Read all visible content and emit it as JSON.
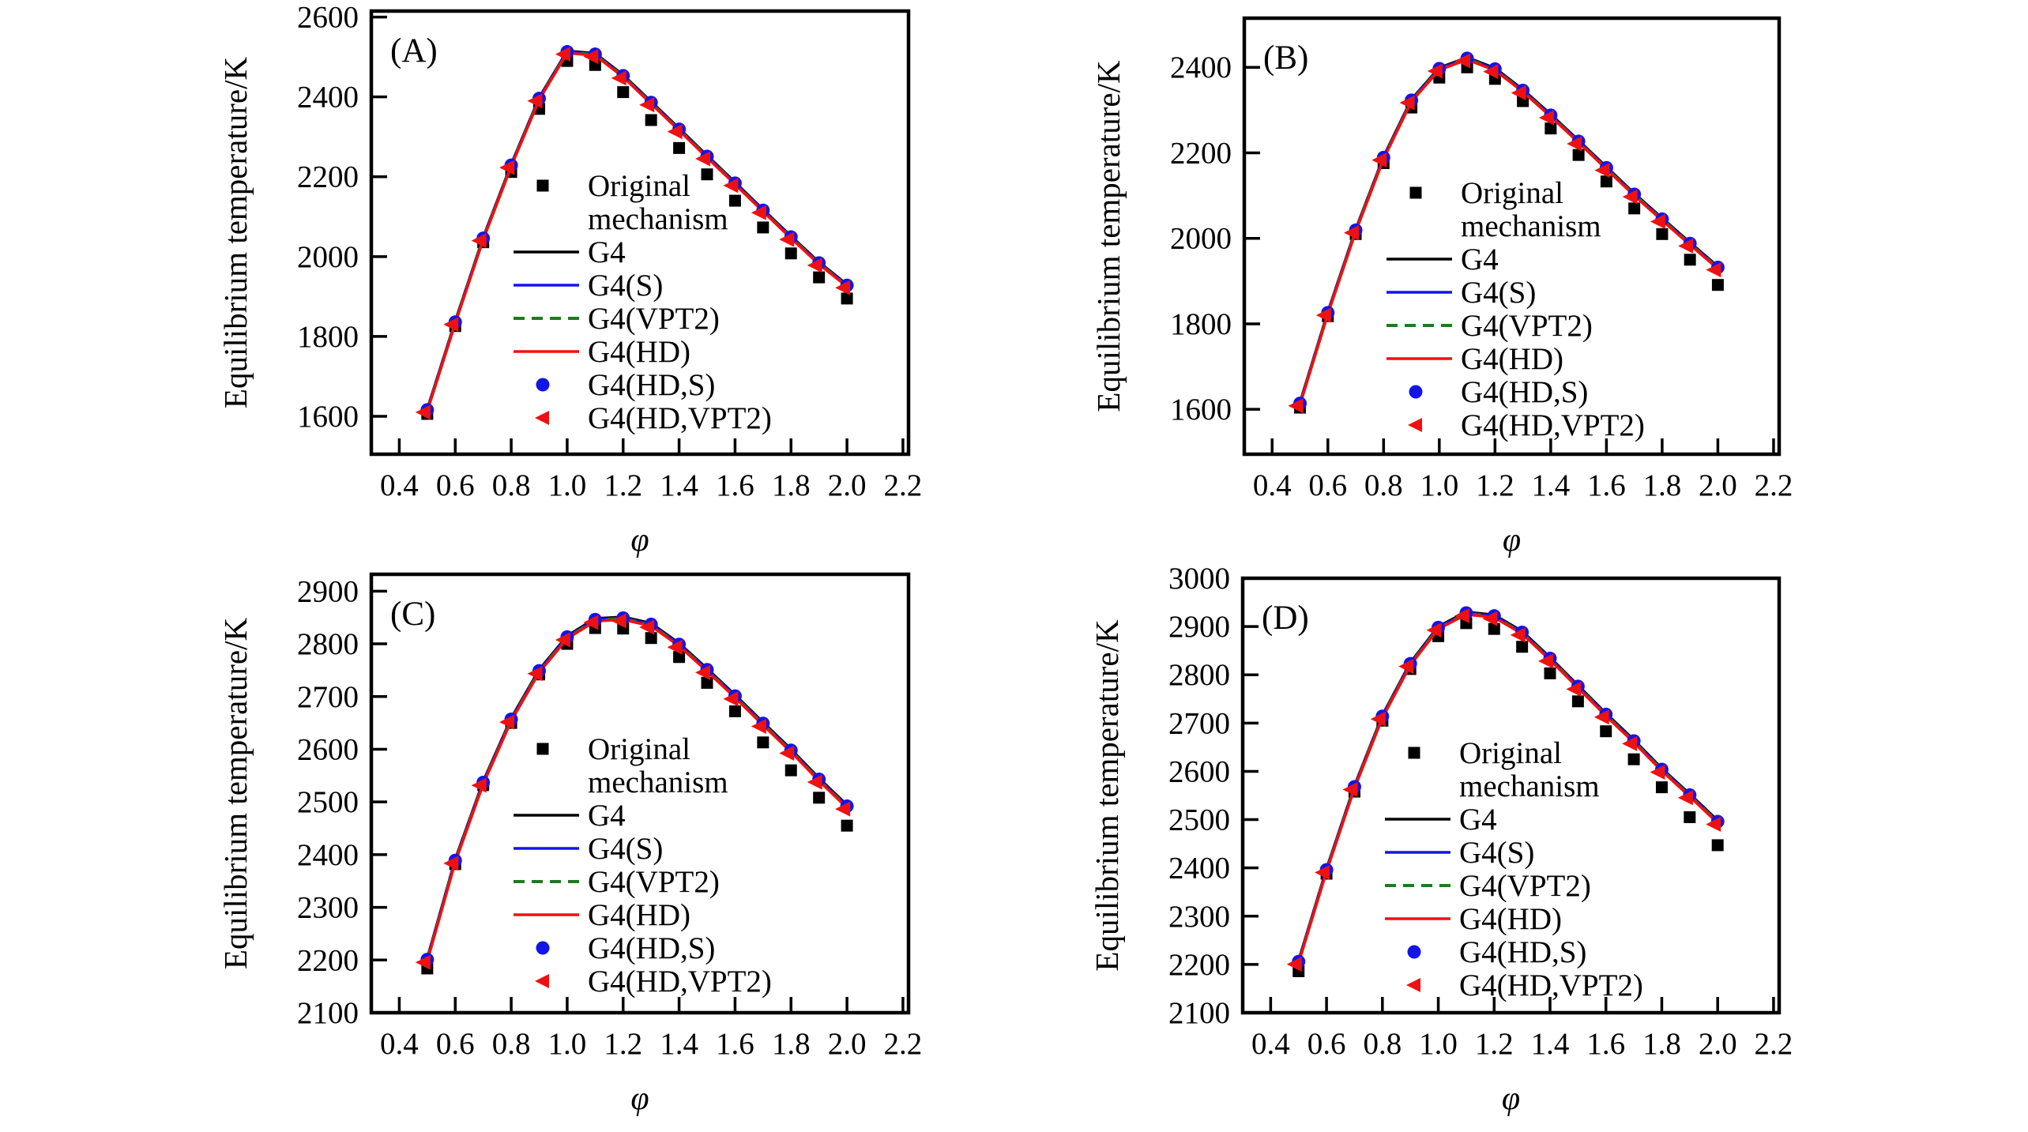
{
  "figure": {
    "background": "#ffffff",
    "colors": {
      "black": "#000000",
      "blue": "#1414e8",
      "green": "#1f7a1f",
      "red": "#ee1111",
      "frame": "#000000"
    },
    "legend": [
      {
        "lines": [
          "Original",
          "mechanism"
        ],
        "marker": "square",
        "color": "black"
      },
      {
        "lines": [
          "G4"
        ],
        "marker": "line",
        "color": "black"
      },
      {
        "lines": [
          "G4(S)"
        ],
        "marker": "line",
        "color": "blue"
      },
      {
        "lines": [
          "G4(VPT2)"
        ],
        "marker": "dash",
        "color": "green"
      },
      {
        "lines": [
          "G4(HD)"
        ],
        "marker": "line",
        "color": "red"
      },
      {
        "lines": [
          "G4(HD,S)"
        ],
        "marker": "circle",
        "color": "blue"
      },
      {
        "lines": [
          "G4(HD,VPT2)"
        ],
        "marker": "triangle",
        "color": "red"
      }
    ]
  },
  "chart_data": [
    {
      "type": "line",
      "panel_label": "(A)",
      "xlabel": "φ",
      "ylabel": "Equilibrium temperature/K",
      "x": [
        0.5,
        0.6,
        0.7,
        0.8,
        0.9,
        1.0,
        1.1,
        1.2,
        1.3,
        1.4,
        1.5,
        1.6,
        1.7,
        1.8,
        1.9,
        2.0
      ],
      "xticks": [
        0.4,
        0.6,
        0.8,
        1.0,
        1.2,
        1.4,
        1.6,
        1.8,
        2.0,
        2.2
      ],
      "xlim": [
        0.3,
        2.22
      ],
      "yticks": [
        1600,
        1800,
        2000,
        2200,
        2400,
        2600
      ],
      "ylim": [
        1505,
        2615
      ],
      "series": [
        {
          "name": "Original mechanism",
          "values": [
            1606,
            1826,
            2036,
            2212,
            2370,
            2490,
            2480,
            2412,
            2342,
            2272,
            2206,
            2140,
            2073,
            2008,
            1948,
            1895
          ]
        },
        {
          "name": "G4 family (G4, G4(S), G4(VPT2), G4(HD), G4(HD,S), G4(HD,VPT2))",
          "values": [
            1615,
            1835,
            2045,
            2228,
            2395,
            2512,
            2506,
            2452,
            2385,
            2318,
            2250,
            2183,
            2115,
            2048,
            1983,
            1927
          ]
        }
      ]
    },
    {
      "type": "line",
      "panel_label": "(B)",
      "xlabel": "φ",
      "ylabel": "Equilibrium temperature/K",
      "x": [
        0.5,
        0.6,
        0.7,
        0.8,
        0.9,
        1.0,
        1.1,
        1.2,
        1.3,
        1.4,
        1.5,
        1.6,
        1.7,
        1.8,
        1.9,
        2.0
      ],
      "xticks": [
        0.4,
        0.6,
        0.8,
        1.0,
        1.2,
        1.4,
        1.6,
        1.8,
        2.0,
        2.2
      ],
      "xlim": [
        0.3,
        2.22
      ],
      "yticks": [
        1600,
        1800,
        2000,
        2200,
        2400
      ],
      "ylim": [
        1495,
        2515
      ],
      "series": [
        {
          "name": "Original mechanism",
          "values": [
            1604,
            1818,
            2010,
            2176,
            2306,
            2376,
            2400,
            2373,
            2321,
            2257,
            2195,
            2133,
            2070,
            2010,
            1950,
            1891
          ]
        },
        {
          "name": "G4 family (G4, G4(S), G4(VPT2), G4(HD), G4(HD,S), G4(HD,VPT2))",
          "values": [
            1613,
            1825,
            2018,
            2188,
            2322,
            2396,
            2420,
            2395,
            2345,
            2287,
            2226,
            2164,
            2102,
            2044,
            1987,
            1931
          ]
        }
      ]
    },
    {
      "type": "line",
      "panel_label": "(C)",
      "xlabel": "φ",
      "ylabel": "Equilibrium temperature/K",
      "x": [
        0.5,
        0.6,
        0.7,
        0.8,
        0.9,
        1.0,
        1.1,
        1.2,
        1.3,
        1.4,
        1.5,
        1.6,
        1.7,
        1.8,
        1.9,
        2.0
      ],
      "xticks": [
        0.4,
        0.6,
        0.8,
        1.0,
        1.2,
        1.4,
        1.6,
        1.8,
        2.0,
        2.2
      ],
      "xlim": [
        0.3,
        2.22
      ],
      "yticks": [
        2100,
        2200,
        2300,
        2400,
        2500,
        2600,
        2700,
        2800,
        2900
      ],
      "ylim": [
        2100,
        2932
      ],
      "series": [
        {
          "name": "Original mechanism",
          "values": [
            2184,
            2382,
            2532,
            2650,
            2742,
            2800,
            2830,
            2829,
            2811,
            2775,
            2726,
            2672,
            2613,
            2560,
            2508,
            2455
          ]
        },
        {
          "name": "G4 family (G4, G4(S), G4(VPT2), G4(HD), G4(HD,S), G4(HD,VPT2))",
          "values": [
            2200,
            2388,
            2536,
            2656,
            2748,
            2812,
            2845,
            2848,
            2836,
            2798,
            2750,
            2700,
            2648,
            2597,
            2542,
            2491
          ]
        }
      ]
    },
    {
      "type": "line",
      "panel_label": "(D)",
      "xlabel": "φ",
      "ylabel": "Equilibrium temperature/K",
      "x": [
        0.5,
        0.6,
        0.7,
        0.8,
        0.9,
        1.0,
        1.1,
        1.2,
        1.3,
        1.4,
        1.5,
        1.6,
        1.7,
        1.8,
        1.9,
        2.0
      ],
      "xticks": [
        0.4,
        0.6,
        0.8,
        1.0,
        1.2,
        1.4,
        1.6,
        1.8,
        2.0,
        2.2
      ],
      "xlim": [
        0.3,
        2.22
      ],
      "yticks": [
        2100,
        2200,
        2300,
        2400,
        2500,
        2600,
        2700,
        2800,
        2900,
        3000
      ],
      "ylim": [
        2100,
        3000
      ],
      "series": [
        {
          "name": "Original mechanism",
          "values": [
            2186,
            2388,
            2558,
            2705,
            2812,
            2880,
            2907,
            2895,
            2858,
            2803,
            2745,
            2683,
            2625,
            2567,
            2505,
            2447
          ]
        },
        {
          "name": "G4 family (G4, G4(S), G4(VPT2), G4(HD), G4(HD,S), G4(HD,VPT2))",
          "values": [
            2205,
            2395,
            2567,
            2713,
            2822,
            2897,
            2927,
            2921,
            2887,
            2833,
            2775,
            2717,
            2662,
            2603,
            2550,
            2495
          ]
        }
      ]
    }
  ]
}
